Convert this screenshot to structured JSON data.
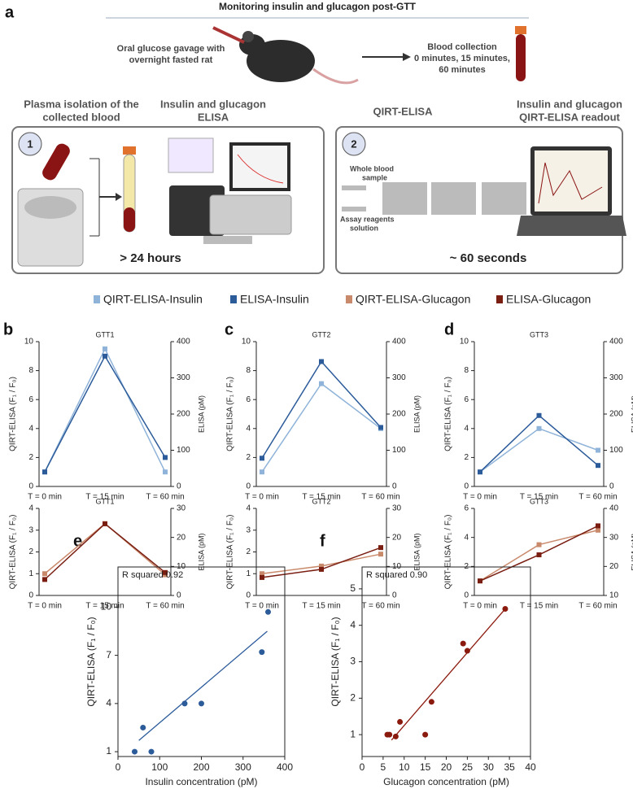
{
  "figure": {
    "panels": [
      "a",
      "b",
      "c",
      "d",
      "e",
      "f"
    ]
  },
  "diagram": {
    "title": "Monitoring  insulin and glucagon post-GTT",
    "gavage": [
      "Oral glucose gavage with",
      "overnight fasted rat"
    ],
    "collection": [
      "Blood collection",
      "0 minutes, 15 minutes,",
      "60 minutes"
    ],
    "plasma": [
      "Plasma isolation of the",
      "collected blood"
    ],
    "elisa": [
      "Insulin and glucagon",
      "ELISA"
    ],
    "qirt": "QIRT-ELISA",
    "readout": [
      "Insulin and glucagon",
      "QIRT-ELISA readout"
    ],
    "step1": "1",
    "step2": "2",
    "time1": "> 24 hours",
    "time2": "~ 60 seconds",
    "whole_blood": [
      "Whole blood",
      "sample"
    ],
    "reagents": [
      "Assay reagents",
      "solution"
    ]
  },
  "chart_data": [
    {
      "type": "line",
      "title": "GTT1",
      "categories": [
        "T = 0 min",
        "T = 15 min",
        "T = 60 min"
      ],
      "ylabel": "QIRT-ELISA (F₁ / F₀)",
      "y2label": "ELISA (pM)",
      "ylim": [
        0,
        10
      ],
      "yticks": [
        0,
        2,
        4,
        6,
        8,
        10
      ],
      "y2lim": [
        0,
        400
      ],
      "y2ticks": [
        0,
        100,
        200,
        300,
        400
      ],
      "series": [
        {
          "name": "QIRT-ELISA-Insulin",
          "color": "#8fb3d9",
          "values": [
            1,
            9.5,
            1
          ]
        },
        {
          "name": "ELISA-Insulin",
          "color": "#2c5b9a",
          "axis": "y2",
          "values": [
            40,
            360,
            80
          ]
        }
      ]
    },
    {
      "type": "line",
      "title": "GTT2",
      "categories": [
        "T = 0 min",
        "T = 15 min",
        "T = 60 min"
      ],
      "ylabel": "QIRT-ELISA (F₁ / F₀)",
      "y2label": "ELISA (pM)",
      "ylim": [
        0,
        10
      ],
      "yticks": [
        0,
        2,
        4,
        6,
        8,
        10
      ],
      "y2lim": [
        0,
        400
      ],
      "y2ticks": [
        0,
        100,
        200,
        300,
        400
      ],
      "series": [
        {
          "name": "QIRT-ELISA-Insulin",
          "color": "#8fb3d9",
          "values": [
            1,
            7.1,
            4
          ]
        },
        {
          "name": "ELISA-Insulin",
          "color": "#2c5b9a",
          "axis": "y2",
          "values": [
            78,
            345,
            163
          ]
        }
      ]
    },
    {
      "type": "line",
      "title": "GTT3",
      "categories": [
        "T = 0 min",
        "T = 15 min",
        "T = 60 min"
      ],
      "ylabel": "QIRT-ELISA (F₁ / F₀)",
      "y2label": "ELISA (pM)",
      "ylim": [
        0,
        10
      ],
      "yticks": [
        0,
        2,
        4,
        6,
        8,
        10
      ],
      "y2lim": [
        0,
        400
      ],
      "y2ticks": [
        0,
        100,
        200,
        300,
        400
      ],
      "series": [
        {
          "name": "QIRT-ELISA-Insulin",
          "color": "#8fb3d9",
          "values": [
            1,
            4,
            2.5
          ]
        },
        {
          "name": "ELISA-Insulin",
          "color": "#2c5b9a",
          "axis": "y2",
          "values": [
            40,
            196,
            58
          ]
        }
      ]
    },
    {
      "type": "line",
      "title": "GTT1",
      "categories": [
        "T = 0 min",
        "T = 15 min",
        "T = 60 min"
      ],
      "ylabel": "QIRT-ELISA (F₁ / F₀)",
      "y2label": "ELISA (pM)",
      "ylim": [
        0,
        4
      ],
      "yticks": [
        0,
        1,
        2,
        3,
        4
      ],
      "y2lim": [
        0,
        30
      ],
      "y2ticks": [
        0,
        10,
        20,
        30
      ],
      "series": [
        {
          "name": "QIRT-ELISA-Glucagon",
          "color": "#c98a6c",
          "values": [
            1,
            3.3,
            0.95
          ]
        },
        {
          "name": "ELISA-Glucagon",
          "color": "#7a1e12",
          "axis": "y2",
          "values": [
            5.5,
            24.7,
            7.9
          ]
        }
      ]
    },
    {
      "type": "line",
      "title": "GTT2",
      "categories": [
        "T = 0 min",
        "T = 15 min",
        "T = 60 min"
      ],
      "ylabel": "QIRT-ELISA (F₁ / F₀)",
      "y2label": "ELISA (pM)",
      "ylim": [
        0,
        4
      ],
      "yticks": [
        0,
        1,
        2,
        3,
        4
      ],
      "y2lim": [
        0,
        30
      ],
      "y2ticks": [
        0,
        10,
        20,
        30
      ],
      "series": [
        {
          "name": "QIRT-ELISA-Glucagon",
          "color": "#c98a6c",
          "values": [
            1,
            1.35,
            1.9
          ]
        },
        {
          "name": "ELISA-Glucagon",
          "color": "#7a1e12",
          "axis": "y2",
          "values": [
            6.2,
            9,
            16.5
          ]
        }
      ]
    },
    {
      "type": "line",
      "title": "GTT3",
      "categories": [
        "T = 0 min",
        "T = 15 min",
        "T = 60 min"
      ],
      "ylabel": "QIRT-ELISA (F₁ / F₀)",
      "y2label": "ELISA (pM)",
      "ylim": [
        0,
        6
      ],
      "yticks": [
        0,
        2,
        4,
        6
      ],
      "y2lim": [
        10,
        40
      ],
      "y2ticks": [
        10,
        20,
        30,
        40
      ],
      "series": [
        {
          "name": "QIRT-ELISA-Glucagon",
          "color": "#c98a6c",
          "values": [
            1,
            3.5,
            4.5
          ]
        },
        {
          "name": "ELISA-Glucagon",
          "color": "#7a1e12",
          "axis": "y2",
          "values": [
            15,
            24,
            34
          ]
        }
      ]
    },
    {
      "type": "scatter",
      "annotation": "R squared 0.92",
      "xlabel": "Insulin concentration (pM)",
      "ylabel": "QIRT-ELISA (F₁ / F₀)",
      "color": "#2c5b9a",
      "xlim": [
        0,
        400
      ],
      "xticks": [
        0,
        100,
        200,
        300,
        400
      ],
      "ylim": [
        0.7,
        12.5
      ],
      "yticks": [
        1,
        4,
        7,
        10
      ],
      "x": [
        40,
        60,
        80,
        160,
        200,
        345,
        360
      ],
      "values": [
        1,
        2.5,
        1,
        4,
        4,
        7.2,
        9.7
      ],
      "fit": {
        "x": [
          50,
          358
        ],
        "y": [
          1.7,
          8.5
        ]
      }
    },
    {
      "type": "scatter",
      "annotation": "R squared 0.90",
      "xlabel": "Glucagon concentration (pM)",
      "ylabel": "QIRT-ELISA (F₁ / F₀)",
      "color": "#8b1a0e",
      "xlim": [
        0,
        40
      ],
      "xticks": [
        0,
        5,
        10,
        15,
        20,
        25,
        30,
        35,
        40
      ],
      "ylim": [
        0.4,
        5.6
      ],
      "yticks": [
        1,
        2,
        3,
        4,
        5
      ],
      "x": [
        6,
        6.5,
        8,
        9,
        15,
        16.5,
        24,
        25,
        34
      ],
      "values": [
        1,
        1,
        0.95,
        1.35,
        1,
        1.9,
        3.5,
        3.3,
        4.45
      ],
      "fit": {
        "x": [
          7,
          34
        ],
        "y": [
          0.85,
          4.45
        ]
      }
    }
  ]
}
